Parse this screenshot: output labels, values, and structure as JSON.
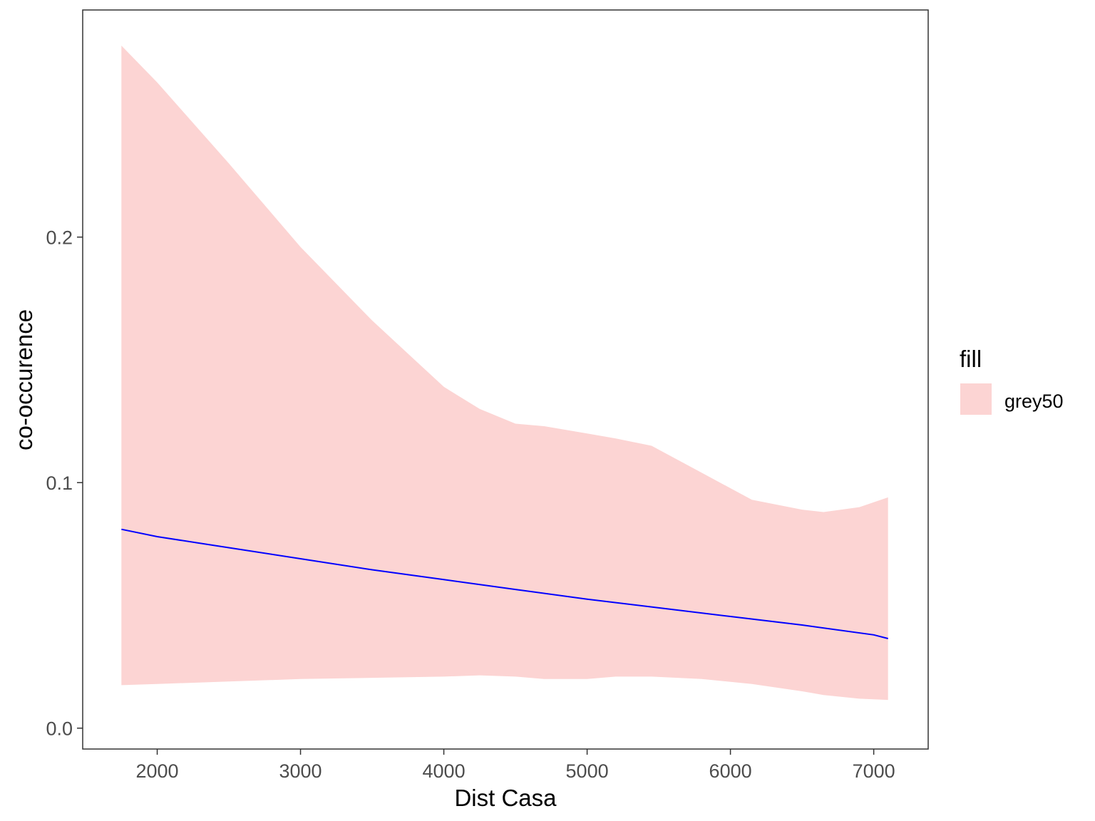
{
  "chart_data": {
    "type": "area",
    "title": "",
    "xlabel": "Dist Casa",
    "ylabel": "co-occurence",
    "xlim": [
      1480,
      7380
    ],
    "ylim": [
      -0.0085,
      0.2925
    ],
    "x_ticks": [
      2000,
      3000,
      4000,
      5000,
      6000,
      7000
    ],
    "x_tick_labels": [
      "2000",
      "3000",
      "4000",
      "5000",
      "6000",
      "7000"
    ],
    "y_ticks": [
      0.0,
      0.1,
      0.2
    ],
    "y_tick_labels": [
      "0.0",
      "0.1",
      "0.2"
    ],
    "grid": false,
    "legend": {
      "title": "fill",
      "position": "right",
      "entries": [
        {
          "label": "grey50",
          "color": "#fcd4d3"
        }
      ]
    },
    "ribbon": {
      "color": "#fcd4d3",
      "x": [
        1750,
        2000,
        2500,
        3000,
        3500,
        4000,
        4250,
        4500,
        4700,
        5000,
        5200,
        5450,
        5800,
        6150,
        6500,
        6650,
        6900,
        7100
      ],
      "upper": [
        0.278,
        0.263,
        0.23,
        0.196,
        0.166,
        0.139,
        0.13,
        0.124,
        0.123,
        0.12,
        0.118,
        0.115,
        0.104,
        0.093,
        0.089,
        0.088,
        0.09,
        0.094
      ],
      "lower": [
        0.0175,
        0.018,
        0.019,
        0.02,
        0.0205,
        0.021,
        0.0215,
        0.021,
        0.02,
        0.02,
        0.021,
        0.021,
        0.02,
        0.018,
        0.015,
        0.0135,
        0.012,
        0.0115
      ]
    },
    "series": [
      {
        "color": "#0000ff",
        "x": [
          1750,
          2000,
          2500,
          3000,
          3500,
          4000,
          4500,
          5000,
          5500,
          6000,
          6500,
          7000,
          7100
        ],
        "values": [
          0.081,
          0.078,
          0.0735,
          0.069,
          0.0645,
          0.0605,
          0.0565,
          0.0525,
          0.049,
          0.0455,
          0.042,
          0.038,
          0.0365
        ]
      }
    ]
  }
}
